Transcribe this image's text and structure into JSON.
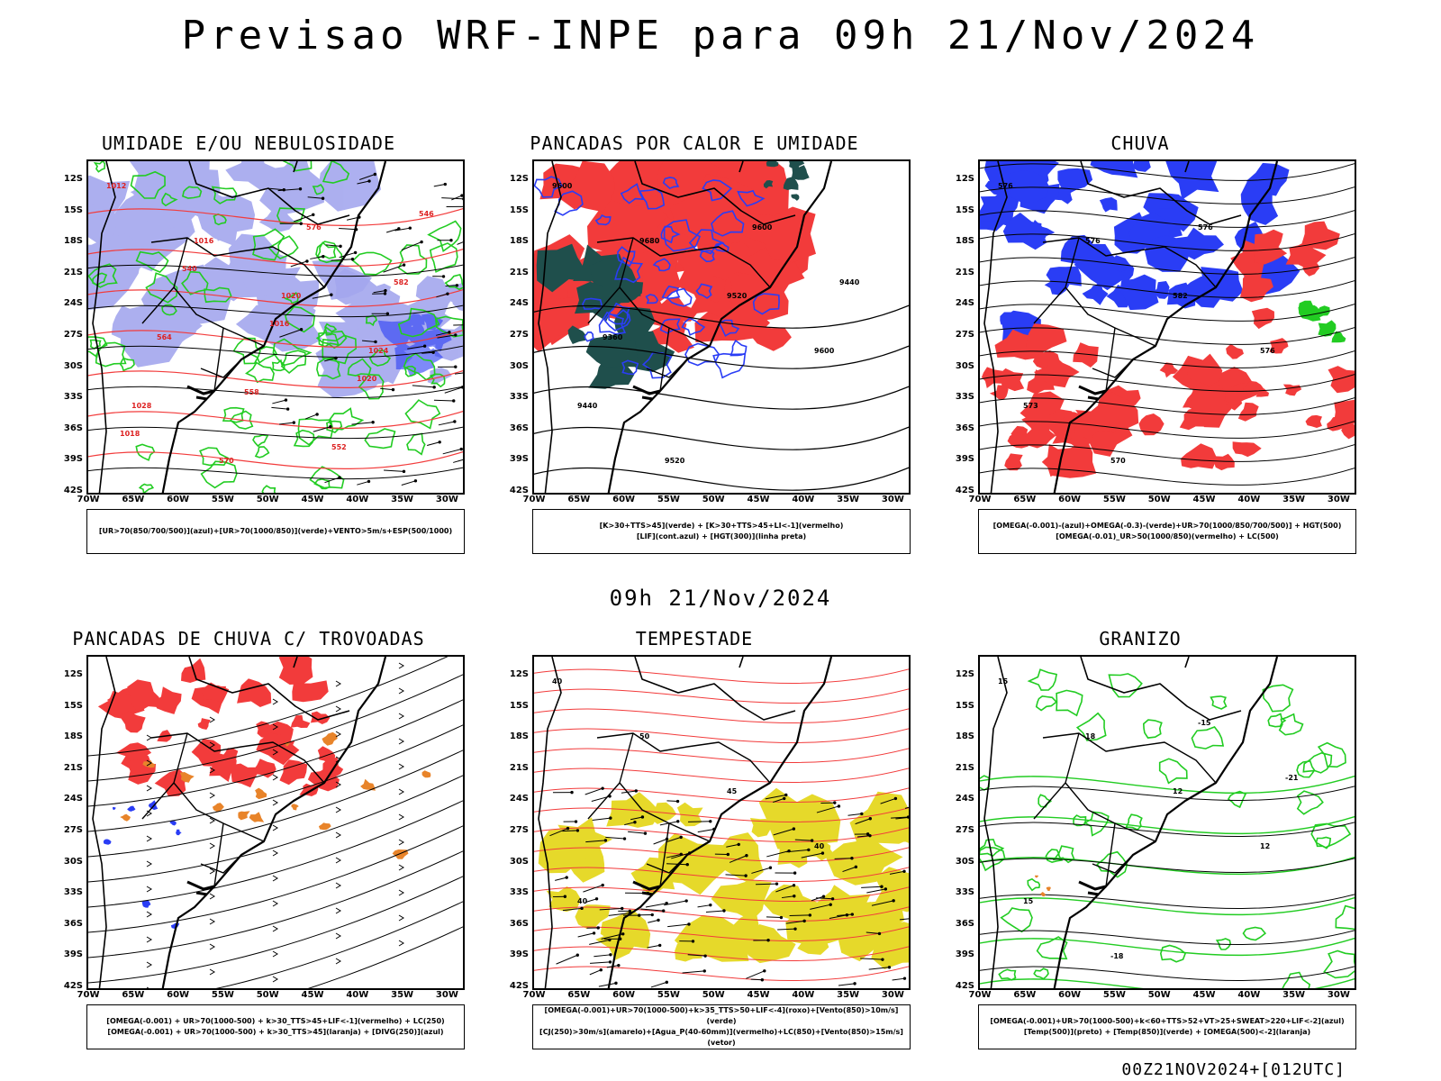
{
  "title": "Previsao WRF-INPE  para 09h 21/Nov/2024",
  "mid_time": "09h 21/Nov/2024",
  "footer": "00Z21NOV2024+[012UTC]",
  "axes": {
    "lat_labels": [
      "12S",
      "15S",
      "18S",
      "21S",
      "24S",
      "27S",
      "30S",
      "33S",
      "36S",
      "39S",
      "42S"
    ],
    "lon_labels": [
      "70W",
      "65W",
      "60W",
      "55W",
      "50W",
      "45W",
      "40W",
      "35W",
      "30W"
    ]
  },
  "colors": {
    "red": "#f23b3b",
    "blue": "#2a3df5",
    "green": "#22cc22",
    "lavender": "#a4a7ee",
    "teal": "#1f4f4c",
    "orange": "#e8842a",
    "yellow": "#e6d92a",
    "black": "#000000"
  },
  "panels": [
    {
      "title": "UMIDADE E/OU NEBULOSIDADE",
      "legend": [
        "[UR>70(850/700/500)](azul)+[UR>70(1000/850)](verde)+VENTO>5m/s+ESP(500/1000)"
      ],
      "contour_labels": [
        "1012",
        "1016",
        "1020",
        "1024",
        "1028",
        "570",
        "576",
        "582",
        "564",
        "558",
        "552",
        "546",
        "540",
        "1016",
        "1020",
        "1018"
      ]
    },
    {
      "title": "PANCADAS POR CALOR E UMIDADE",
      "legend": [
        "[K>30+TTS>45](verde) + [K>30+TTS>45+LI<-1](vermelho)",
        "[LIF](cont.azul) + [HGT(300)](linha preta)"
      ],
      "contour_labels": [
        "9600",
        "9680",
        "9520",
        "9600",
        "9440",
        "9520",
        "9600",
        "9440",
        "9360"
      ]
    },
    {
      "title": "CHUVA",
      "legend": [
        "[OMEGA(-0.001)-(azul)+OMEGA(-0.3)-(verde)+UR>70(1000/850/700/500)] + HGT(500)",
        "[OMEGA(-0.01)_UR>50(1000/850)(vermelho) + LC(500)"
      ],
      "contour_labels": [
        "576",
        "576",
        "582",
        "576",
        "573",
        "570",
        "576"
      ]
    },
    {
      "title": "PANCADAS DE CHUVA C/ TROVOADAS",
      "legend": [
        "[OMEGA(-0.001) + UR>70(1000-500) + k>30_TTS>45+LIF<-1](vermelho) + LC(250)",
        "[OMEGA(-0.001) + UR>70(1000-500) + k>30_TTS>45](laranja) + [DIVG(250)](azul)"
      ],
      "contour_labels": []
    },
    {
      "title": "TEMPESTADE",
      "legend": [
        "[OMEGA(-0.001)+UR>70(1000-500)+k>35_TTS>50+LIF<-4](roxo)+[Vento(850)>10m/s](verde)",
        "[CJ(250)>30m/s](amarelo)+[Agua_P(40-60mm)](vermelho)+LC(850)+[Vento(850)>15m/s](vetor)"
      ],
      "contour_labels": [
        "40",
        "50",
        "45",
        "40",
        "40"
      ]
    },
    {
      "title": "GRANIZO",
      "legend": [
        "[OMEGA(-0.001)+UR>70(1000-500)+k<60+TTS>52+VT>25+SWEAT>220+LIF<-2](azul)",
        "[Temp(500)](preto) + [Temp(850)](verde) + [OMEGA(500)<-2](laranja)"
      ],
      "contour_labels": [
        "15",
        "18",
        "12",
        "12",
        "15",
        "-18",
        "-15",
        "-21"
      ]
    }
  ]
}
